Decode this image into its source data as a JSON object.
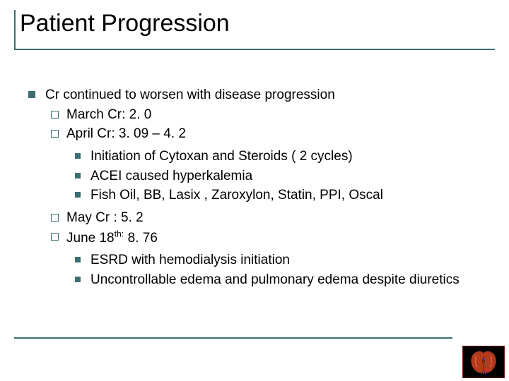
{
  "colors": {
    "accent": "#3b6e73",
    "bullet_square": "#3b6e73",
    "bullet_open_square": "#3b6e73",
    "bullet_small_square": "#3b6e73",
    "rule": "#3b6e73",
    "kidney_fill": "#b23a1f",
    "kidney_highlight": "#e06a3a",
    "kidney_vein": "#2a3fd6"
  },
  "title": "Patient Progression",
  "l1_0": "Cr continued to worsen with disease progression",
  "l2_0": "March Cr: 2. 0",
  "l2_1": "April Cr: 3. 09 – 4. 2",
  "l3_0": "Initiation of Cytoxan and Steroids ( 2 cycles)",
  "l3_1": "ACEI caused hyperkalemia",
  "l3_2": "Fish Oil, BB, Lasix , Zaroxylon, Statin, PPI, Oscal",
  "l2_2": "May Cr : 5. 2",
  "l2_3_pre": "June 18",
  "l2_3_sup": "th:",
  "l2_3_post": " 8. 76",
  "l3_3": "ESRD with hemodialysis initiation",
  "l3_4": "Uncontrollable edema and pulmonary edema despite diuretics"
}
